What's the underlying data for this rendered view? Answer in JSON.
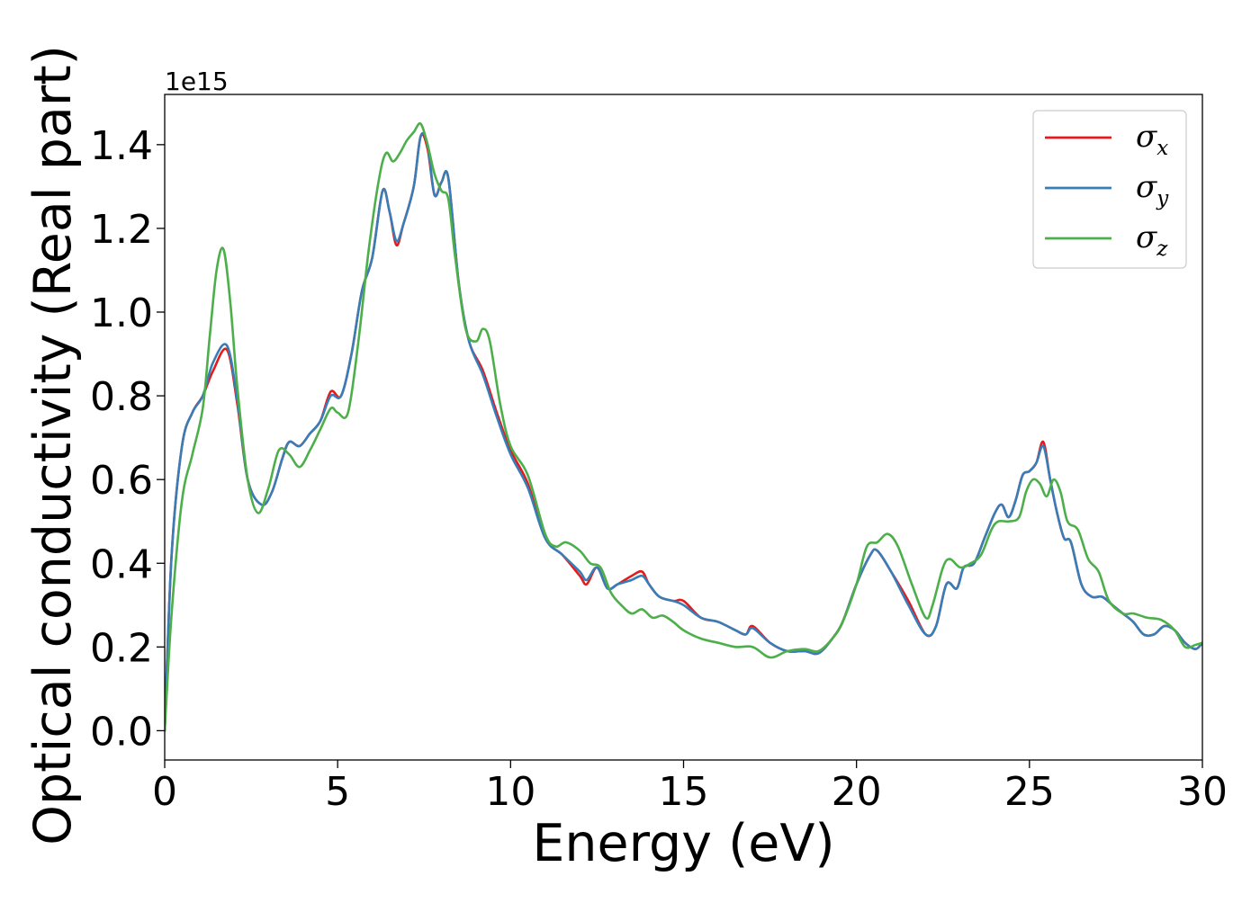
{
  "chart_data": {
    "type": "line",
    "xlabel": "Energy (eV)",
    "ylabel": "Optical conductivity (Real part)",
    "y_offset_label": "1e15",
    "xlim": [
      0,
      30
    ],
    "ylim": [
      -0.07,
      1.52
    ],
    "xticks": [
      0,
      5,
      10,
      15,
      20,
      25,
      30
    ],
    "xtick_labels": [
      "0",
      "5",
      "10",
      "15",
      "20",
      "25",
      "30"
    ],
    "yticks": [
      0.0,
      0.2,
      0.4,
      0.6,
      0.8,
      1.0,
      1.2,
      1.4
    ],
    "ytick_labels": [
      "0.0",
      "0.2",
      "0.4",
      "0.6",
      "0.8",
      "1.0",
      "1.2",
      "1.4"
    ],
    "grid": false,
    "legend_position": "top-right",
    "series": [
      {
        "name": "σx",
        "legend_base": "σ",
        "legend_sub": "x",
        "color": "#e41a1c",
        "x": [
          0.0,
          0.2,
          0.5,
          0.8,
          1.1,
          1.4,
          1.8,
          2.1,
          2.4,
          2.8,
          3.1,
          3.4,
          3.6,
          3.9,
          4.2,
          4.5,
          4.8,
          5.1,
          5.4,
          5.7,
          6.0,
          6.3,
          6.5,
          6.7,
          6.9,
          7.2,
          7.4,
          7.6,
          7.8,
          8.0,
          8.2,
          8.5,
          8.8,
          9.2,
          9.6,
          10.0,
          10.5,
          11.0,
          11.5,
          12.0,
          12.2,
          12.5,
          12.8,
          13.1,
          13.5,
          13.8,
          14.0,
          14.3,
          14.7,
          15.0,
          15.5,
          16.0,
          16.5,
          16.8,
          17.0,
          17.5,
          18.0,
          18.5,
          18.9,
          19.3,
          19.6,
          20.0,
          20.4,
          20.6,
          21.0,
          21.5,
          22.0,
          22.3,
          22.6,
          22.9,
          23.1,
          23.4,
          23.7,
          24.0,
          24.2,
          24.4,
          24.6,
          24.8,
          25.0,
          25.2,
          25.4,
          25.6,
          25.8,
          26.0,
          26.2,
          26.5,
          26.8,
          27.1,
          27.4,
          27.7,
          28.0,
          28.3,
          28.6,
          28.9,
          29.2,
          29.5,
          29.8,
          30.0
        ],
        "y": [
          0.0,
          0.42,
          0.68,
          0.76,
          0.8,
          0.86,
          0.91,
          0.78,
          0.6,
          0.54,
          0.57,
          0.65,
          0.69,
          0.68,
          0.71,
          0.74,
          0.81,
          0.8,
          0.9,
          1.05,
          1.13,
          1.29,
          1.24,
          1.16,
          1.21,
          1.3,
          1.42,
          1.39,
          1.28,
          1.31,
          1.32,
          1.07,
          0.93,
          0.86,
          0.76,
          0.67,
          0.59,
          0.46,
          0.42,
          0.37,
          0.35,
          0.39,
          0.34,
          0.35,
          0.37,
          0.38,
          0.35,
          0.32,
          0.31,
          0.31,
          0.27,
          0.26,
          0.24,
          0.23,
          0.25,
          0.21,
          0.19,
          0.19,
          0.185,
          0.22,
          0.26,
          0.35,
          0.42,
          0.43,
          0.38,
          0.31,
          0.23,
          0.25,
          0.35,
          0.34,
          0.39,
          0.4,
          0.46,
          0.52,
          0.54,
          0.51,
          0.55,
          0.61,
          0.62,
          0.64,
          0.69,
          0.6,
          0.52,
          0.46,
          0.45,
          0.35,
          0.32,
          0.32,
          0.3,
          0.28,
          0.26,
          0.23,
          0.23,
          0.25,
          0.24,
          0.21,
          0.195,
          0.21
        ]
      },
      {
        "name": "σy",
        "legend_base": "σ",
        "legend_sub": "y",
        "color": "#377eb8",
        "x": [
          0.0,
          0.2,
          0.5,
          0.8,
          1.1,
          1.4,
          1.8,
          2.1,
          2.4,
          2.8,
          3.1,
          3.4,
          3.6,
          3.9,
          4.2,
          4.5,
          4.8,
          5.1,
          5.4,
          5.7,
          6.0,
          6.3,
          6.5,
          6.7,
          6.9,
          7.2,
          7.4,
          7.6,
          7.8,
          8.0,
          8.2,
          8.5,
          8.8,
          9.2,
          9.6,
          10.0,
          10.5,
          11.0,
          11.5,
          12.0,
          12.2,
          12.5,
          12.8,
          13.1,
          13.5,
          13.8,
          14.0,
          14.3,
          14.7,
          15.0,
          15.5,
          16.0,
          16.5,
          16.8,
          17.0,
          17.5,
          18.0,
          18.5,
          18.9,
          19.3,
          19.6,
          20.0,
          20.4,
          20.6,
          21.0,
          21.5,
          22.0,
          22.3,
          22.6,
          22.9,
          23.1,
          23.4,
          23.7,
          24.0,
          24.2,
          24.4,
          24.6,
          24.8,
          25.0,
          25.2,
          25.4,
          25.6,
          25.8,
          26.0,
          26.2,
          26.5,
          26.8,
          27.1,
          27.4,
          27.7,
          28.0,
          28.3,
          28.6,
          28.9,
          29.2,
          29.5,
          29.8,
          30.0
        ],
        "y": [
          0.0,
          0.42,
          0.68,
          0.76,
          0.8,
          0.88,
          0.92,
          0.79,
          0.6,
          0.54,
          0.57,
          0.65,
          0.69,
          0.68,
          0.71,
          0.74,
          0.8,
          0.8,
          0.9,
          1.05,
          1.13,
          1.29,
          1.24,
          1.17,
          1.21,
          1.3,
          1.42,
          1.4,
          1.28,
          1.31,
          1.32,
          1.07,
          0.93,
          0.85,
          0.75,
          0.66,
          0.58,
          0.46,
          0.42,
          0.38,
          0.36,
          0.39,
          0.34,
          0.35,
          0.36,
          0.37,
          0.35,
          0.32,
          0.31,
          0.3,
          0.27,
          0.26,
          0.24,
          0.23,
          0.245,
          0.21,
          0.19,
          0.19,
          0.185,
          0.22,
          0.26,
          0.35,
          0.42,
          0.43,
          0.38,
          0.3,
          0.23,
          0.25,
          0.35,
          0.34,
          0.39,
          0.4,
          0.46,
          0.52,
          0.54,
          0.51,
          0.55,
          0.61,
          0.62,
          0.64,
          0.68,
          0.6,
          0.52,
          0.46,
          0.45,
          0.35,
          0.32,
          0.32,
          0.3,
          0.28,
          0.26,
          0.23,
          0.23,
          0.25,
          0.24,
          0.21,
          0.195,
          0.21
        ]
      },
      {
        "name": "σz",
        "legend_base": "σ",
        "legend_sub": "z",
        "color": "#4daf4a",
        "x": [
          0.0,
          0.2,
          0.5,
          0.8,
          1.1,
          1.3,
          1.5,
          1.7,
          1.9,
          2.1,
          2.4,
          2.7,
          3.0,
          3.3,
          3.6,
          3.9,
          4.2,
          4.5,
          4.8,
          5.0,
          5.3,
          5.6,
          5.9,
          6.2,
          6.4,
          6.6,
          6.8,
          7.0,
          7.2,
          7.4,
          7.6,
          7.8,
          8.0,
          8.2,
          8.4,
          8.7,
          9.0,
          9.2,
          9.4,
          9.7,
          10.0,
          10.5,
          11.0,
          11.3,
          11.6,
          12.0,
          12.3,
          12.6,
          12.9,
          13.2,
          13.5,
          13.8,
          14.1,
          14.4,
          14.7,
          15.0,
          15.5,
          16.0,
          16.5,
          17.0,
          17.5,
          18.0,
          18.5,
          18.9,
          19.3,
          19.6,
          20.0,
          20.3,
          20.6,
          20.9,
          21.2,
          21.6,
          22.0,
          22.2,
          22.5,
          22.7,
          23.0,
          23.3,
          23.6,
          23.9,
          24.1,
          24.4,
          24.7,
          24.9,
          25.1,
          25.3,
          25.5,
          25.7,
          25.9,
          26.1,
          26.4,
          26.7,
          27.0,
          27.3,
          27.7,
          28.0,
          28.4,
          28.8,
          29.2,
          29.5,
          29.8,
          30.0
        ],
        "y": [
          0.0,
          0.28,
          0.55,
          0.66,
          0.77,
          0.94,
          1.1,
          1.15,
          1.02,
          0.82,
          0.6,
          0.52,
          0.58,
          0.67,
          0.66,
          0.63,
          0.67,
          0.72,
          0.77,
          0.76,
          0.76,
          0.93,
          1.15,
          1.32,
          1.38,
          1.36,
          1.38,
          1.41,
          1.43,
          1.45,
          1.4,
          1.33,
          1.29,
          1.27,
          1.13,
          0.96,
          0.93,
          0.96,
          0.93,
          0.78,
          0.68,
          0.61,
          0.47,
          0.44,
          0.45,
          0.43,
          0.4,
          0.39,
          0.33,
          0.3,
          0.28,
          0.29,
          0.27,
          0.275,
          0.26,
          0.24,
          0.22,
          0.21,
          0.2,
          0.2,
          0.175,
          0.19,
          0.195,
          0.19,
          0.22,
          0.26,
          0.35,
          0.44,
          0.45,
          0.47,
          0.44,
          0.35,
          0.27,
          0.3,
          0.39,
          0.41,
          0.39,
          0.4,
          0.42,
          0.48,
          0.5,
          0.5,
          0.51,
          0.57,
          0.6,
          0.59,
          0.56,
          0.6,
          0.57,
          0.5,
          0.48,
          0.41,
          0.38,
          0.31,
          0.28,
          0.28,
          0.27,
          0.265,
          0.24,
          0.2,
          0.205,
          0.21
        ]
      }
    ]
  }
}
